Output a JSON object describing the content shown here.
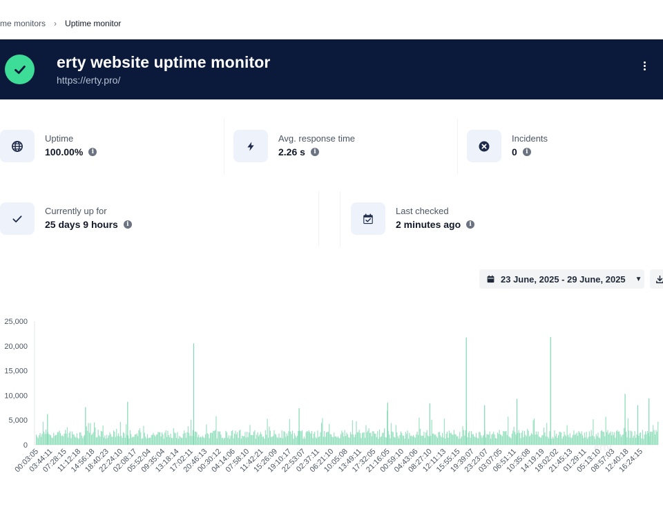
{
  "breadcrumb": {
    "parent": "time monitors",
    "current": "Uptime monitor"
  },
  "header": {
    "title": "erty website uptime monitor",
    "url": "https://erty.pro/",
    "status_color": "#3ddc97",
    "background": "#0b1a3a"
  },
  "stats": {
    "uptime": {
      "label": "Uptime",
      "value": "100.00%"
    },
    "response": {
      "label": "Avg. response time",
      "value": "2.26 s"
    },
    "incidents": {
      "label": "Incidents",
      "value": "0"
    },
    "up_for": {
      "label": "Currently up for",
      "value": "25 days 9 hours"
    },
    "last_checked": {
      "label": "Last checked",
      "value": "2 minutes ago"
    }
  },
  "toolbar": {
    "date_range": "23 June, 2025 - 29 June, 2025"
  },
  "chart_data": {
    "type": "bar",
    "title": "",
    "xlabel": "",
    "ylabel": "",
    "ylim": [
      0,
      25000
    ],
    "y_ticks": [
      "25,000",
      "20,000",
      "15,000",
      "10,000",
      "5,000",
      "0"
    ],
    "y_tick_values": [
      25000,
      20000,
      15000,
      10000,
      5000,
      0
    ],
    "x_tick_labels": [
      "00:03:05",
      "03:44:11",
      "07:28:15",
      "11:12:18",
      "14:56:18",
      "18:40:23",
      "22:24:10",
      "02:08:17",
      "05:52:04",
      "09:35:04",
      "13:18:14",
      "17:02:11",
      "20:46:13",
      "00:30:12",
      "04:14:06",
      "07:58:10",
      "11:42:21",
      "15:26:09",
      "19:10:17",
      "22:53:07",
      "02:37:11",
      "06:21:10",
      "10:05:08",
      "13:49:11",
      "17:32:05",
      "21:16:05",
      "00:59:10",
      "04:43:06",
      "08:27:10",
      "12:11:13",
      "15:55:15",
      "19:39:07",
      "23:23:07",
      "03:07:05",
      "06:51:11",
      "10:35:08",
      "14:19:19",
      "18:02:02",
      "21:45:13",
      "01:29:11",
      "05:13:10",
      "08:57:03",
      "12:40:18",
      "16:24:15"
    ],
    "series_color": "#7fd9b2",
    "baseline_range": [
      1200,
      3000
    ],
    "spikes": [
      {
        "x_index": 11,
        "value": 20500
      },
      {
        "x_index": 30.4,
        "value": 21700
      },
      {
        "x_index": 36.4,
        "value": 21800
      },
      {
        "x_index": 6.3,
        "value": 8700
      },
      {
        "x_index": 41.7,
        "value": 10300
      },
      {
        "x_index": 43.4,
        "value": 9400
      },
      {
        "x_index": 34,
        "value": 9300
      },
      {
        "x_index": 24.8,
        "value": 8500
      },
      {
        "x_index": 27.8,
        "value": 8400
      },
      {
        "x_index": 31.7,
        "value": 8000
      },
      {
        "x_index": 3.3,
        "value": 7600
      },
      {
        "x_index": 18.5,
        "value": 7400
      },
      {
        "x_index": 0.6,
        "value": 6200
      },
      {
        "x_index": 42.6,
        "value": 8000
      }
    ]
  }
}
